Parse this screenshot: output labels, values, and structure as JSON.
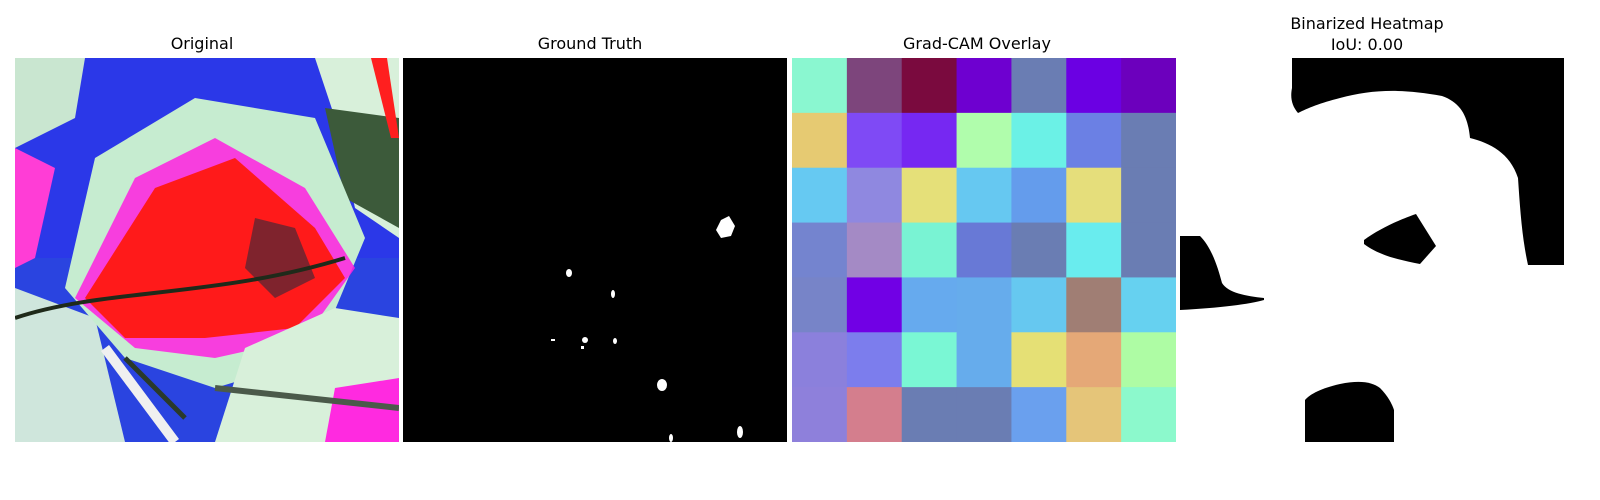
{
  "panels": [
    {
      "title": "Original"
    },
    {
      "title": "Ground Truth"
    },
    {
      "title": "Grad-CAM Overlay"
    },
    {
      "title_line1": "Binarized Heatmap",
      "title_line2": "IoU: 0.00"
    }
  ],
  "colors": {
    "background": "#ffffff",
    "mask_on": "#ffffff",
    "mask_off": "#000000"
  },
  "gradcam_grid": [
    [
      "#8af7d0",
      "#7d457c",
      "#7a0a3e",
      "#6e00d0",
      "#6a7db3",
      "#6b00e3",
      "#6c00bd"
    ],
    [
      "#e6ca72",
      "#7f4af5",
      "#7628f2",
      "#b0fdac",
      "#6bf1e6",
      "#6b80e4",
      "#6a7db3"
    ],
    [
      "#66c9f2",
      "#8f88e0",
      "#e5e079",
      "#66c8f1",
      "#649cec",
      "#e5de7b",
      "#6a7db3"
    ],
    [
      "#7484cf",
      "#a48ac5",
      "#79f3d3",
      "#6879d6",
      "#6a7db3",
      "#69ecee",
      "#6a7db3"
    ],
    [
      "#7784c8",
      "#7100e5",
      "#66aaee",
      "#66acec",
      "#66c8f0",
      "#a07e74",
      "#66d1f0"
    ],
    [
      "#8b80dc",
      "#7c7ded",
      "#7af7d4",
      "#66acec",
      "#e5e075",
      "#e5a877",
      "#aefca4"
    ],
    [
      "#8e80db",
      "#d47e8d",
      "#6a7db3",
      "#6a7db3",
      "#6aa0ee",
      "#e5c579",
      "#8cf9cc"
    ]
  ]
}
